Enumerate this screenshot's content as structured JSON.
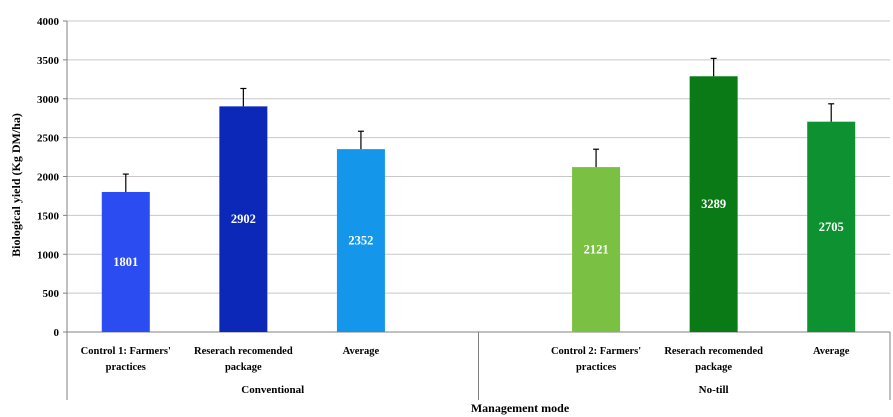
{
  "chart_data": {
    "type": "bar",
    "ylabel": "Biological yield (Kg DM/ha)",
    "xlabel": "Management mode",
    "ylim": [
      0,
      4000
    ],
    "y_ticks": [
      0,
      500,
      1000,
      1500,
      2000,
      2500,
      3000,
      3500,
      4000
    ],
    "grid": true,
    "groups": [
      {
        "name": "Conventional",
        "categories": [
          {
            "label_lines": [
              "Control 1: Farmers'",
              "practices"
            ],
            "value": 1801,
            "value_label": "1801",
            "error": 230,
            "color": "#2a4cf0"
          },
          {
            "label_lines": [
              "Reserach recomended",
              "package"
            ],
            "value": 2902,
            "value_label": "2902",
            "error": 230,
            "color": "#0b28b8"
          },
          {
            "label_lines": [
              "Average"
            ],
            "value": 2352,
            "value_label": "2352",
            "error": 230,
            "color": "#1497ea"
          }
        ]
      },
      {
        "name": "No-till",
        "categories": [
          {
            "label_lines": [
              "Control 2: Farmers'",
              "practices"
            ],
            "value": 2121,
            "value_label": "2121",
            "error": 230,
            "color": "#7ac143"
          },
          {
            "label_lines": [
              "Reserach recomended",
              "package"
            ],
            "value": 3289,
            "value_label": "3289",
            "error": 230,
            "color": "#0a7a16"
          },
          {
            "label_lines": [
              "Average"
            ],
            "value": 2705,
            "value_label": "2705",
            "error": 230,
            "color": "#0e9130"
          }
        ]
      }
    ]
  }
}
